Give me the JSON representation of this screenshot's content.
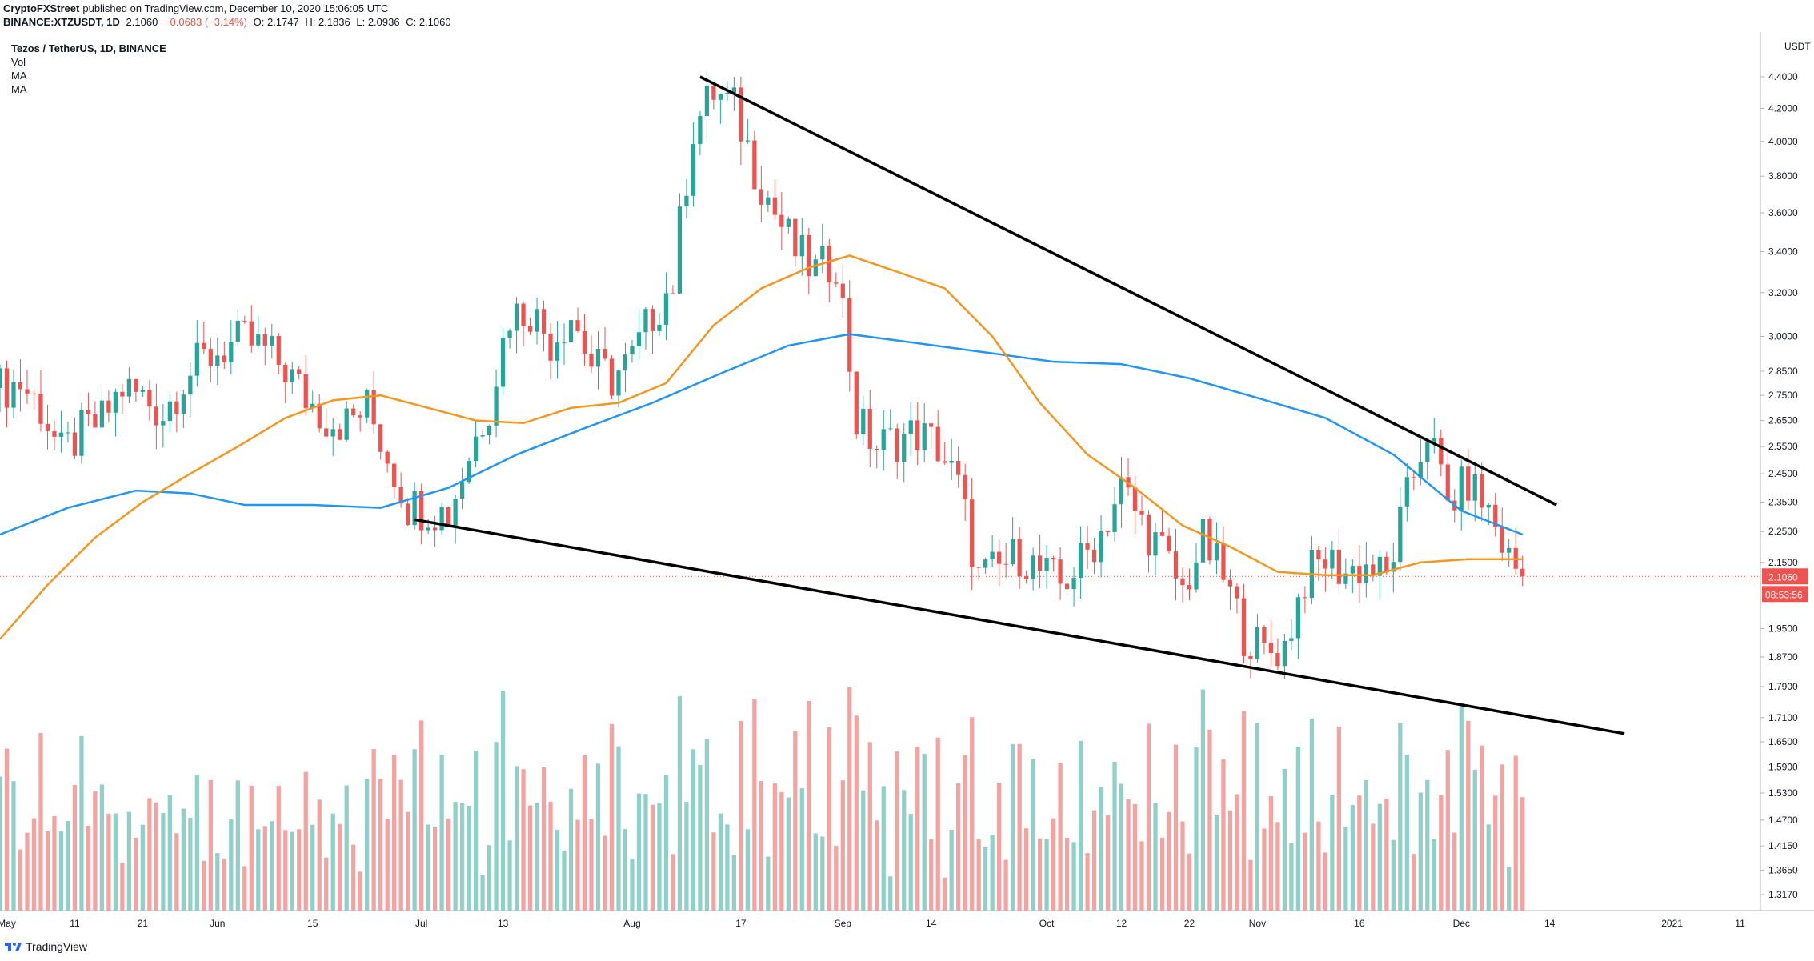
{
  "header": {
    "author": "CryptoFXStreet",
    "published": "published on TradingView.com, December 10, 2020 15:06:05 UTC",
    "symbol": "BINANCE:XTZUSDT, 1D",
    "last": "2.1060",
    "change": "−0.0683 (−3.14%)",
    "open": "O: 2.1747",
    "high": "H: 2.1836",
    "low": "L: 2.0936",
    "close": "C: 2.1060"
  },
  "legend": {
    "title": "Tezos / TetherUS, 1D, BINANCE",
    "vol": "Vol",
    "ma1": "MA",
    "ma2": "MA"
  },
  "footer": {
    "logo_text": "TradingView"
  },
  "colors": {
    "up": "#26a69a",
    "down": "#ef5350",
    "vol_up": "#8fd1c9",
    "vol_down": "#f4a3a1",
    "ma_fast": "#f5961d",
    "ma_slow": "#2196f3",
    "trendline": "#000000",
    "price_tag": "#ef5350"
  },
  "chart_data": {
    "type": "candlestick",
    "price_axis": {
      "unit": "USDT",
      "scale": "log",
      "ticks": [
        "4.4000",
        "4.2000",
        "4.0000",
        "3.8000",
        "3.6000",
        "3.4000",
        "3.2000",
        "3.0000",
        "2.8500",
        "2.7500",
        "2.6500",
        "2.5500",
        "2.4500",
        "2.3500",
        "2.2500",
        "2.1500",
        "1.9500",
        "1.8700",
        "1.7900",
        "1.7100",
        "1.6500",
        "1.5900",
        "1.5300",
        "1.4700",
        "1.4150",
        "1.3650",
        "1.3170"
      ]
    },
    "last_price": {
      "value": "2.1060",
      "countdown": "08:53:56"
    },
    "time_axis": {
      "ticks": [
        {
          "label": "May",
          "date": "2020-05-01"
        },
        {
          "label": "11",
          "date": "2020-05-11"
        },
        {
          "label": "21",
          "date": "2020-05-21"
        },
        {
          "label": "Jun",
          "date": "2020-06-01"
        },
        {
          "label": "15",
          "date": "2020-06-15"
        },
        {
          "label": "Jul",
          "date": "2020-07-01"
        },
        {
          "label": "13",
          "date": "2020-07-13"
        },
        {
          "label": "Aug",
          "date": "2020-08-01"
        },
        {
          "label": "17",
          "date": "2020-08-17"
        },
        {
          "label": "Sep",
          "date": "2020-09-01"
        },
        {
          "label": "14",
          "date": "2020-09-14"
        },
        {
          "label": "Oct",
          "date": "2020-10-01"
        },
        {
          "label": "12",
          "date": "2020-10-12"
        },
        {
          "label": "22",
          "date": "2020-10-22"
        },
        {
          "label": "Nov",
          "date": "2020-11-01"
        },
        {
          "label": "16",
          "date": "2020-11-16"
        },
        {
          "label": "Dec",
          "date": "2020-12-01"
        },
        {
          "label": "14",
          "date": "2020-12-14"
        },
        {
          "label": "2021",
          "date": "2021-01-01"
        },
        {
          "label": "11",
          "date": "2021-01-11"
        }
      ],
      "range": [
        "2020-04-30",
        "2021-01-14"
      ]
    },
    "close_series": [
      [
        "2020-04-30",
        2.78
      ],
      [
        "2020-05-03",
        2.8
      ],
      [
        "2020-05-06",
        2.7
      ],
      [
        "2020-05-09",
        2.52
      ],
      [
        "2020-05-12",
        2.6
      ],
      [
        "2020-05-15",
        2.65
      ],
      [
        "2020-05-18",
        2.78
      ],
      [
        "2020-05-21",
        2.74
      ],
      [
        "2020-05-24",
        2.68
      ],
      [
        "2020-05-27",
        2.82
      ],
      [
        "2020-05-30",
        2.9
      ],
      [
        "2020-06-02",
        2.95
      ],
      [
        "2020-06-05",
        2.98
      ],
      [
        "2020-06-08",
        2.94
      ],
      [
        "2020-06-11",
        2.86
      ],
      [
        "2020-06-14",
        2.74
      ],
      [
        "2020-06-17",
        2.66
      ],
      [
        "2020-06-20",
        2.64
      ],
      [
        "2020-06-23",
        2.7
      ],
      [
        "2020-06-26",
        2.52
      ],
      [
        "2020-06-29",
        2.34
      ],
      [
        "2020-07-02",
        2.33
      ],
      [
        "2020-07-05",
        2.31
      ],
      [
        "2020-07-08",
        2.52
      ],
      [
        "2020-07-11",
        2.72
      ],
      [
        "2020-07-14",
        3.1
      ],
      [
        "2020-07-17",
        3.12
      ],
      [
        "2020-07-20",
        2.98
      ],
      [
        "2020-07-23",
        3.1
      ],
      [
        "2020-07-26",
        2.88
      ],
      [
        "2020-07-29",
        2.82
      ],
      [
        "2020-08-01",
        2.9
      ],
      [
        "2020-08-04",
        3.1
      ],
      [
        "2020-08-07",
        3.25
      ],
      [
        "2020-08-10",
        4.08
      ],
      [
        "2020-08-13",
        4.3
      ],
      [
        "2020-08-16",
        4.2
      ],
      [
        "2020-08-19",
        3.85
      ],
      [
        "2020-08-22",
        3.6
      ],
      [
        "2020-08-25",
        3.4
      ],
      [
        "2020-08-28",
        3.3
      ],
      [
        "2020-08-31",
        3.36
      ],
      [
        "2020-09-03",
        2.65
      ],
      [
        "2020-09-06",
        2.55
      ],
      [
        "2020-09-09",
        2.58
      ],
      [
        "2020-09-12",
        2.6
      ],
      [
        "2020-09-15",
        2.55
      ],
      [
        "2020-09-18",
        2.4
      ],
      [
        "2020-09-21",
        2.1
      ],
      [
        "2020-09-24",
        2.13
      ],
      [
        "2020-09-27",
        2.18
      ],
      [
        "2020-09-30",
        2.12
      ],
      [
        "2020-10-03",
        2.08
      ],
      [
        "2020-10-06",
        2.15
      ],
      [
        "2020-10-09",
        2.25
      ],
      [
        "2020-10-12",
        2.4
      ],
      [
        "2020-10-15",
        2.28
      ],
      [
        "2020-10-18",
        2.18
      ],
      [
        "2020-10-21",
        2.06
      ],
      [
        "2020-10-24",
        2.22
      ],
      [
        "2020-10-27",
        2.1
      ],
      [
        "2020-10-30",
        1.94
      ],
      [
        "2020-11-02",
        1.88
      ],
      [
        "2020-11-05",
        1.9
      ],
      [
        "2020-11-08",
        2.1
      ],
      [
        "2020-11-11",
        2.16
      ],
      [
        "2020-11-14",
        2.12
      ],
      [
        "2020-11-17",
        2.14
      ],
      [
        "2020-11-20",
        2.1
      ],
      [
        "2020-11-23",
        2.36
      ],
      [
        "2020-11-26",
        2.62
      ],
      [
        "2020-11-29",
        2.34
      ],
      [
        "2020-12-02",
        2.42
      ],
      [
        "2020-12-05",
        2.32
      ],
      [
        "2020-12-08",
        2.16
      ],
      [
        "2020-12-10",
        2.106
      ]
    ],
    "ma_fast": [
      [
        "2020-04-30",
        1.92
      ],
      [
        "2020-05-07",
        2.08
      ],
      [
        "2020-05-14",
        2.23
      ],
      [
        "2020-05-21",
        2.35
      ],
      [
        "2020-05-28",
        2.45
      ],
      [
        "2020-06-04",
        2.55
      ],
      [
        "2020-06-11",
        2.66
      ],
      [
        "2020-06-18",
        2.73
      ],
      [
        "2020-06-25",
        2.75
      ],
      [
        "2020-07-02",
        2.7
      ],
      [
        "2020-07-09",
        2.65
      ],
      [
        "2020-07-16",
        2.64
      ],
      [
        "2020-07-23",
        2.7
      ],
      [
        "2020-07-30",
        2.72
      ],
      [
        "2020-08-06",
        2.8
      ],
      [
        "2020-08-13",
        3.05
      ],
      [
        "2020-08-20",
        3.22
      ],
      [
        "2020-08-27",
        3.32
      ],
      [
        "2020-09-02",
        3.38
      ],
      [
        "2020-09-09",
        3.3
      ],
      [
        "2020-09-16",
        3.22
      ],
      [
        "2020-09-23",
        3.0
      ],
      [
        "2020-09-30",
        2.72
      ],
      [
        "2020-10-07",
        2.52
      ],
      [
        "2020-10-14",
        2.4
      ],
      [
        "2020-10-21",
        2.27
      ],
      [
        "2020-10-28",
        2.2
      ],
      [
        "2020-11-04",
        2.12
      ],
      [
        "2020-11-11",
        2.11
      ],
      [
        "2020-11-18",
        2.11
      ],
      [
        "2020-11-25",
        2.15
      ],
      [
        "2020-12-02",
        2.16
      ],
      [
        "2020-12-10",
        2.16
      ]
    ],
    "ma_slow": [
      [
        "2020-04-30",
        2.24
      ],
      [
        "2020-05-10",
        2.33
      ],
      [
        "2020-05-20",
        2.39
      ],
      [
        "2020-05-28",
        2.38
      ],
      [
        "2020-06-05",
        2.34
      ],
      [
        "2020-06-15",
        2.34
      ],
      [
        "2020-06-25",
        2.33
      ],
      [
        "2020-07-05",
        2.4
      ],
      [
        "2020-07-15",
        2.52
      ],
      [
        "2020-07-25",
        2.62
      ],
      [
        "2020-08-04",
        2.72
      ],
      [
        "2020-08-14",
        2.84
      ],
      [
        "2020-08-24",
        2.96
      ],
      [
        "2020-09-02",
        3.01
      ],
      [
        "2020-09-12",
        2.97
      ],
      [
        "2020-09-22",
        2.93
      ],
      [
        "2020-10-02",
        2.89
      ],
      [
        "2020-10-12",
        2.88
      ],
      [
        "2020-10-22",
        2.82
      ],
      [
        "2020-11-01",
        2.74
      ],
      [
        "2020-11-11",
        2.66
      ],
      [
        "2020-11-21",
        2.52
      ],
      [
        "2020-12-01",
        2.32
      ],
      [
        "2020-12-10",
        2.24
      ]
    ],
    "trendlines": [
      {
        "name": "upper",
        "from": [
          "2020-08-11",
          4.4
        ],
        "to": [
          "2020-12-15",
          2.34
        ]
      },
      {
        "name": "lower",
        "from": [
          "2020-06-30",
          2.29
        ],
        "to": [
          "2020-12-25",
          1.67
        ]
      }
    ],
    "volume_axis_max": 100
  }
}
